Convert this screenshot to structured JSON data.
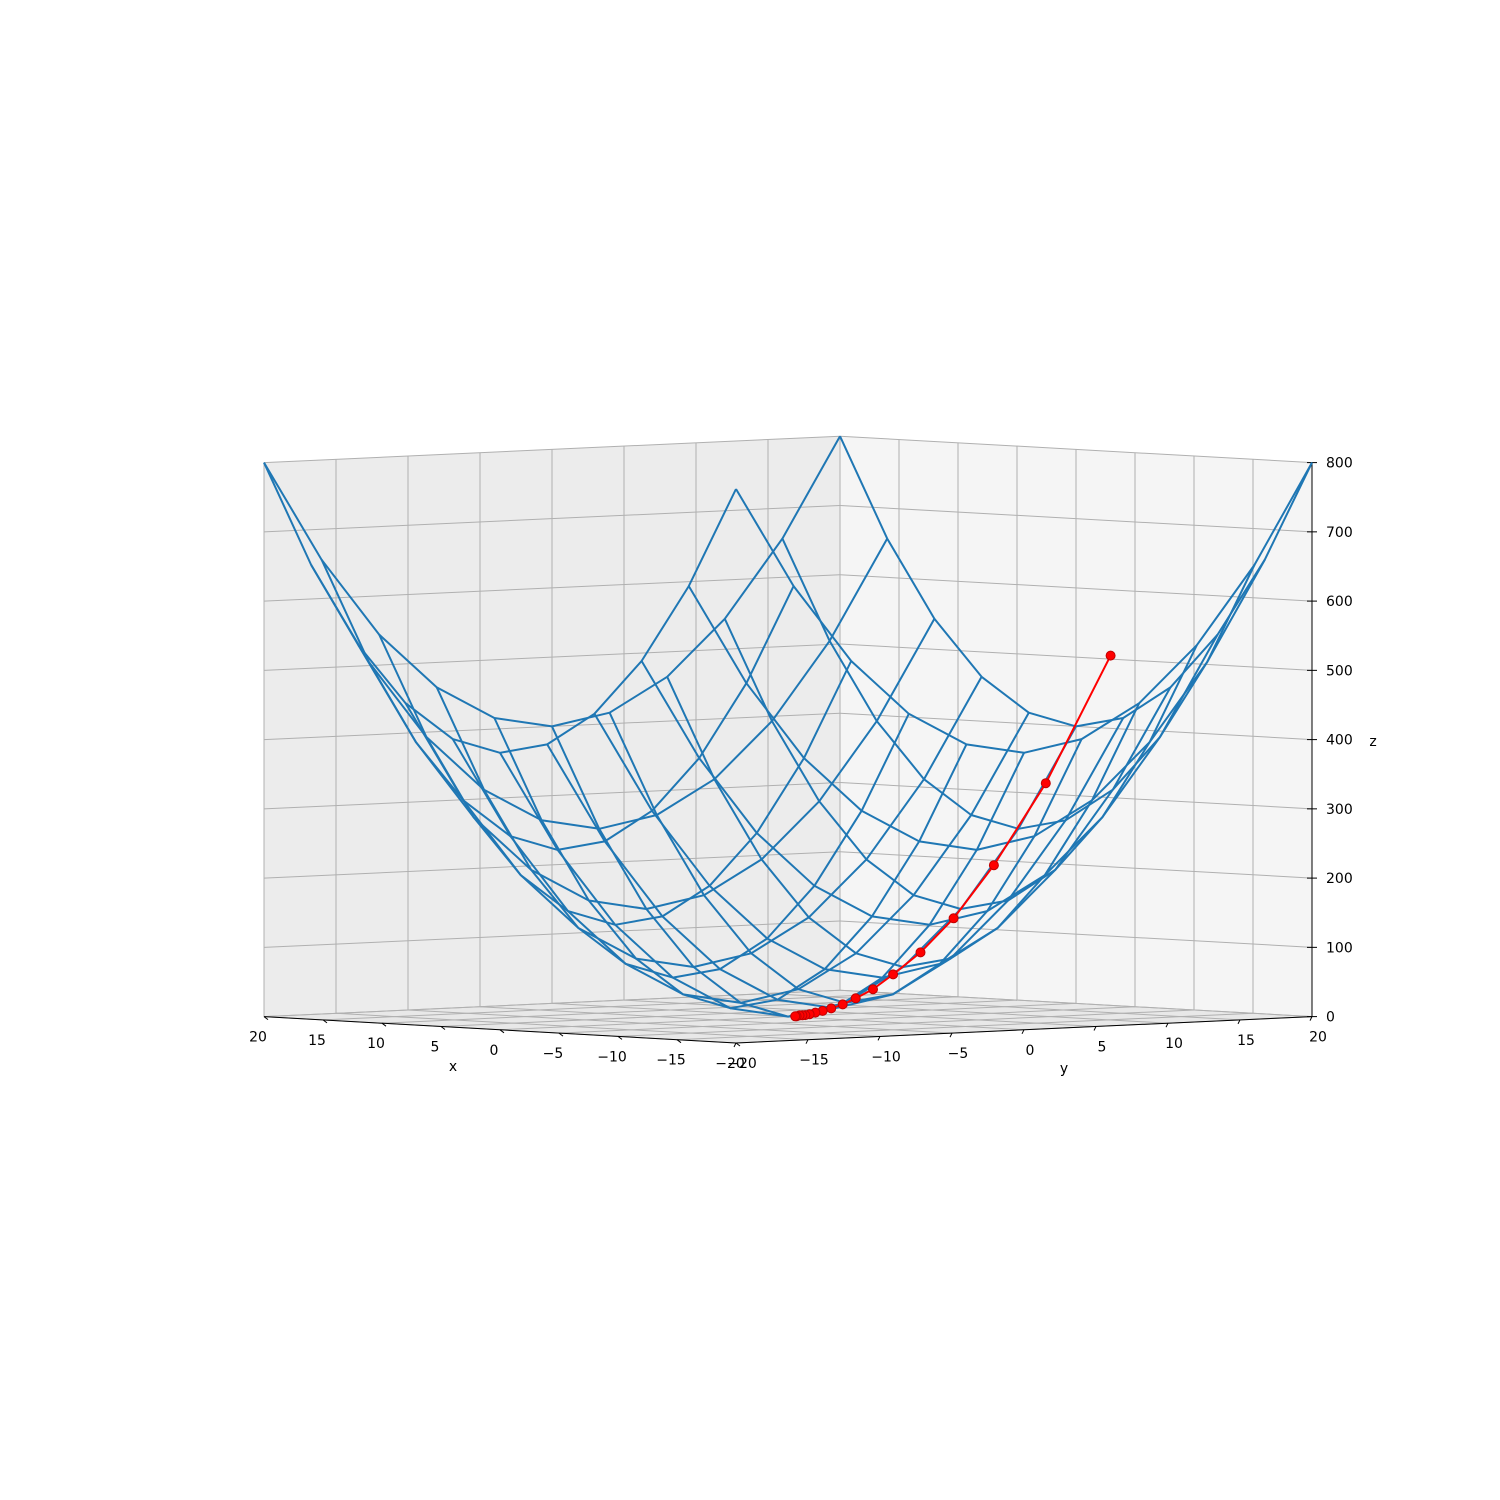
{
  "chart_data": {
    "type": "surface_wireframe_3d",
    "title": "",
    "xlabel": "x",
    "ylabel": "y",
    "zlabel": "z",
    "xlim": [
      -20,
      20
    ],
    "ylim": [
      -20,
      20
    ],
    "zlim": [
      0,
      800
    ],
    "x_ticks": [
      "−20",
      "−15",
      "−10",
      "−5",
      "0",
      "5",
      "10",
      "15",
      "20"
    ],
    "y_ticks": [
      "−20",
      "−15",
      "−10",
      "−5",
      "0",
      "5",
      "10",
      "15",
      "20"
    ],
    "z_ticks": [
      "0",
      "100",
      "200",
      "300",
      "400",
      "500",
      "600",
      "700",
      "800"
    ],
    "grid": true,
    "surface": {
      "function": "z = x^2 + y^2",
      "grid_values": [
        -20,
        -16,
        -12,
        -8,
        -4,
        0,
        4,
        8,
        12,
        16,
        20
      ],
      "color": "#1f77b4"
    },
    "path": {
      "color": "#ff0000",
      "points": [
        {
          "x": 0,
          "y": 22.4,
          "z": 500
        },
        {
          "x": 0,
          "y": 17.9,
          "z": 320
        },
        {
          "x": 0,
          "y": 14.3,
          "z": 205
        },
        {
          "x": 0,
          "y": 11.5,
          "z": 131
        },
        {
          "x": 0,
          "y": 9.2,
          "z": 84
        },
        {
          "x": 0,
          "y": 7.3,
          "z": 54
        },
        {
          "x": 0,
          "y": 5.9,
          "z": 34
        },
        {
          "x": 0,
          "y": 4.7,
          "z": 22
        },
        {
          "x": 0,
          "y": 3.8,
          "z": 14
        },
        {
          "x": 0,
          "y": 3.0,
          "z": 9
        },
        {
          "x": 0,
          "y": 2.4,
          "z": 6
        },
        {
          "x": 0,
          "y": 1.9,
          "z": 4
        },
        {
          "x": 0,
          "y": 1.5,
          "z": 2
        },
        {
          "x": 0,
          "y": 1.2,
          "z": 1
        },
        {
          "x": 0,
          "y": 1.0,
          "z": 1
        },
        {
          "x": 0,
          "y": 0.8,
          "z": 1
        },
        {
          "x": 0,
          "y": 0.6,
          "z": 0
        },
        {
          "x": 0,
          "y": 0.5,
          "z": 0
        }
      ]
    }
  }
}
